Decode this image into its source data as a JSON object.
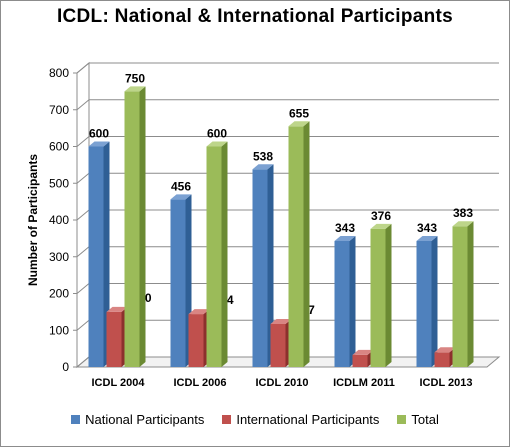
{
  "chart_data": {
    "type": "bar",
    "title": "ICDL: National  &  International  Participants",
    "xlabel": "",
    "ylabel": "Number of Participants",
    "ylim": [
      0,
      800
    ],
    "yticks": [
      0,
      100,
      200,
      300,
      400,
      500,
      600,
      700,
      800
    ],
    "grid": true,
    "legend_position": "bottom",
    "categories": [
      "ICDL 2004",
      "ICDL 2006",
      "ICDL 2010",
      "ICDLM 2011",
      "ICDL 2013"
    ],
    "series": [
      {
        "name": "National Participants",
        "values": [
          600,
          456,
          538,
          343,
          343
        ],
        "color": "#4f81bd",
        "side": "#2f5f95",
        "top": "#7ba1d2"
      },
      {
        "name": "International Participants",
        "values": [
          150,
          144,
          117,
          33,
          40
        ],
        "color": "#c0504d",
        "side": "#8c302d",
        "top": "#d98583"
      },
      {
        "name": "Total",
        "values": [
          750,
          600,
          655,
          376,
          383
        ],
        "color": "#9bbb59",
        "side": "#6b8a33",
        "top": "#bdd58a"
      }
    ]
  }
}
